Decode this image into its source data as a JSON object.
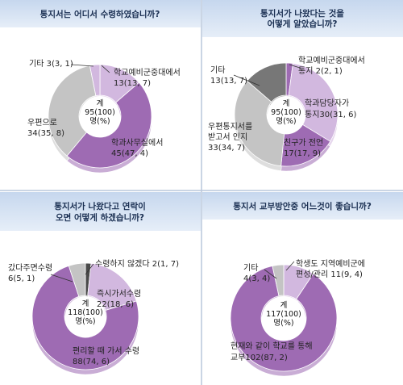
{
  "colors": {
    "band_top": "#c6d7ee",
    "band_bottom": "#e6eef8",
    "ring_light": "#d2b8df",
    "ring_purple": "#9e6bb3",
    "ring_grey": "#c4c4c4",
    "ring_dark": "#777777",
    "tiny_dark": "#4a4a4a",
    "divider": "#b9c7dc"
  },
  "chart_data": [
    {
      "type": "pie",
      "title": "통지서는 어디서 수령하였습니까?",
      "center_label": [
        "계",
        "95(100)",
        "명(%)"
      ],
      "slices": [
        {
          "label": "학교예비군중대에서",
          "value_text": "13(13, 7)",
          "value": 13,
          "percent": 13.7,
          "color": "ring_light"
        },
        {
          "label": "학과사무실에서",
          "value_text": "45(47, 4)",
          "value": 45,
          "percent": 47.4,
          "color": "ring_purple"
        },
        {
          "label": "우편으로",
          "value_text": "34(35, 8)",
          "value": 34,
          "percent": 35.8,
          "color": "ring_grey"
        },
        {
          "label": "기타",
          "value_text": "3(3, 1)",
          "value": 3,
          "percent": 3.1,
          "color": "ring_light"
        }
      ]
    },
    {
      "type": "pie",
      "title": [
        "통지서가 나왔다는 것을",
        "어떻게 알았습니까?"
      ],
      "center_label": [
        "계",
        "95(100)",
        "명(%)"
      ],
      "slices": [
        {
          "label": "학교예비군중대에서 통지",
          "value_text": "2(2, 1)",
          "value": 2,
          "percent": 2.1,
          "color": "ring_purple"
        },
        {
          "label": "학과담당자가 통지",
          "value_text": "30(31, 6)",
          "value": 30,
          "percent": 31.6,
          "color": "ring_light"
        },
        {
          "label": "친구가 전언",
          "value_text": "17(17, 9)",
          "value": 17,
          "percent": 17.9,
          "color": "ring_purple"
        },
        {
          "label": "우편통지서를 받고서 인지",
          "value_text": "33(34, 7)",
          "value": 33,
          "percent": 34.7,
          "color": "ring_grey"
        },
        {
          "label": "기타",
          "value_text": "13(13, 7)",
          "value": 13,
          "percent": 13.7,
          "color": "ring_dark"
        }
      ]
    },
    {
      "type": "pie",
      "title": [
        "통지서가 나왔다고 연락이",
        "오면 어떻게 하겠습니까?"
      ],
      "center_label": [
        "계",
        "118(100)",
        "명(%)"
      ],
      "slices": [
        {
          "label": "수령하지 않겠다",
          "value_text": "2(1, 7)",
          "value": 2,
          "percent": 1.7,
          "color": "tiny_dark"
        },
        {
          "label": "즉시가서수령",
          "value_text": "22(18, 6)",
          "value": 22,
          "percent": 18.6,
          "color": "ring_light"
        },
        {
          "label": "편리할 때 가서 수령",
          "value_text": "88(74, 6)",
          "value": 88,
          "percent": 74.6,
          "color": "ring_purple"
        },
        {
          "label": "갔다주면수령",
          "value_text": "6(5, 1)",
          "value": 6,
          "percent": 5.1,
          "color": "ring_grey"
        }
      ]
    },
    {
      "type": "pie",
      "title": "통지서 교부방안중 어느것이 좋습니까?",
      "center_label": [
        "계",
        "117(100)",
        "명(%)"
      ],
      "slices": [
        {
          "label": "학생도 지역예비군에 편성/관리",
          "value_text": "11(9, 4)",
          "value": 11,
          "percent": 9.4,
          "color": "ring_light"
        },
        {
          "label": "현재와 같이 학교를 통해 교부",
          "value_text": "102(87, 2)",
          "value": 102,
          "percent": 87.2,
          "color": "ring_purple"
        },
        {
          "label": "기타",
          "value_text": "4(3, 4)",
          "value": 4,
          "percent": 3.4,
          "color": "ring_grey"
        }
      ]
    }
  ]
}
